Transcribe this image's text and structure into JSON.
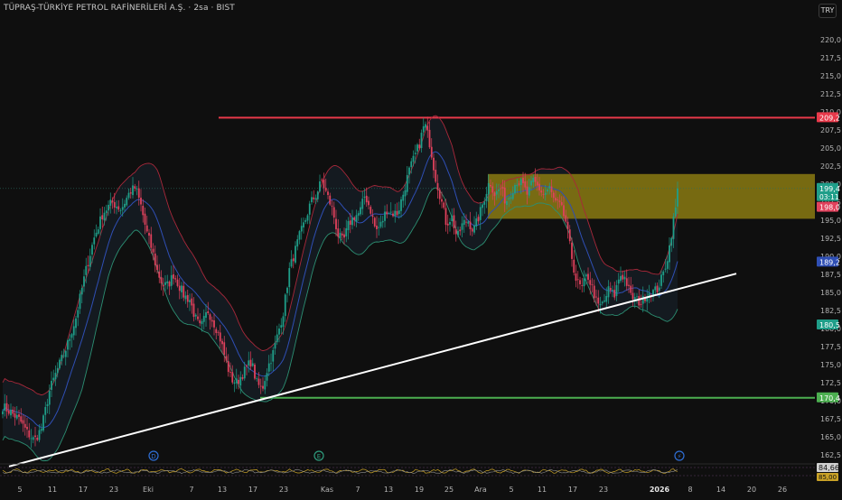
{
  "header": {
    "title": "TÜPRAŞ-TÜRKİYE PETROL RAFİNERİLERİ A.Ş. · 2sa · BIST",
    "currency_button": "TRY"
  },
  "colors": {
    "background": "#0f0f0f",
    "up_candle": "#1f9e89",
    "down_candle": "#e0415c",
    "upper_band": "#a8283a",
    "lower_band": "#2c8f72",
    "middle_band": "#2f4fb5",
    "resistance": "#e8394a",
    "support": "#4caf50",
    "zone": "#8a7a12",
    "trendline": "#ffffff"
  },
  "chart_data": {
    "type": "candlestick",
    "ylim": [
      160.5,
      223.0
    ],
    "y_ticks": [
      "162,5",
      "165,0",
      "167,5",
      "170,0",
      "172,5",
      "175,0",
      "177,5",
      "180,0",
      "182,5",
      "185,0",
      "187,5",
      "190,0",
      "192,5",
      "195,0",
      "197,5",
      "200,0",
      "202,5",
      "205,0",
      "207,5",
      "210,0",
      "212,5",
      "215,0",
      "217,5",
      "220,0"
    ],
    "x_labels": [
      "5",
      "11",
      "17",
      "23",
      "Eki",
      "7",
      "13",
      "17",
      "23",
      "Kas",
      "7",
      "13",
      "19",
      "25",
      "Ara",
      "5",
      "11",
      "17",
      "23",
      "2026",
      "8",
      "14",
      "20",
      "26"
    ],
    "close_path": [
      [
        0,
        169.5
      ],
      [
        12,
        168.4
      ],
      [
        22,
        167.3
      ],
      [
        30,
        165.6
      ],
      [
        38,
        164.5
      ],
      [
        46,
        166.2
      ],
      [
        55,
        171.5
      ],
      [
        64,
        174.5
      ],
      [
        74,
        177.5
      ],
      [
        84,
        181.5
      ],
      [
        94,
        187.5
      ],
      [
        104,
        192.5
      ],
      [
        114,
        196.0
      ],
      [
        124,
        197.5
      ],
      [
        134,
        196.5
      ],
      [
        144,
        199.0
      ],
      [
        150,
        199.5
      ],
      [
        156,
        197.0
      ],
      [
        162,
        193.5
      ],
      [
        168,
        191.0
      ],
      [
        174,
        188.0
      ],
      [
        180,
        186.0
      ],
      [
        186,
        186.0
      ],
      [
        192,
        187.5
      ],
      [
        198,
        186.0
      ],
      [
        204,
        184.5
      ],
      [
        210,
        184.0
      ],
      [
        216,
        181.5
      ],
      [
        222,
        180.0
      ],
      [
        230,
        182.5
      ],
      [
        238,
        180.5
      ],
      [
        244,
        178.5
      ],
      [
        250,
        175.5
      ],
      [
        256,
        173.0
      ],
      [
        262,
        172.5
      ],
      [
        270,
        174.0
      ],
      [
        278,
        175.5
      ],
      [
        284,
        172.5
      ],
      [
        290,
        171.5
      ],
      [
        296,
        174.5
      ],
      [
        302,
        176.5
      ],
      [
        308,
        179.5
      ],
      [
        314,
        182.5
      ],
      [
        320,
        188.0
      ],
      [
        326,
        190.5
      ],
      [
        332,
        193.0
      ],
      [
        338,
        195.0
      ],
      [
        344,
        197.5
      ],
      [
        350,
        198.5
      ],
      [
        356,
        200.5
      ],
      [
        362,
        198.5
      ],
      [
        368,
        196.5
      ],
      [
        374,
        193.0
      ],
      [
        380,
        192.0
      ],
      [
        386,
        194.5
      ],
      [
        392,
        195.5
      ],
      [
        398,
        196.0
      ],
      [
        404,
        198.5
      ],
      [
        410,
        196.5
      ],
      [
        416,
        193.5
      ],
      [
        422,
        194.5
      ],
      [
        428,
        196.5
      ],
      [
        434,
        196.0
      ],
      [
        440,
        196.0
      ],
      [
        446,
        198.5
      ],
      [
        452,
        201.5
      ],
      [
        458,
        203.5
      ],
      [
        464,
        205.5
      ],
      [
        470,
        208.5
      ],
      [
        476,
        205.5
      ],
      [
        482,
        201.0
      ],
      [
        488,
        198.0
      ],
      [
        494,
        194.5
      ],
      [
        500,
        195.5
      ],
      [
        506,
        192.5
      ],
      [
        512,
        194.5
      ],
      [
        518,
        195.0
      ],
      [
        524,
        193.5
      ],
      [
        530,
        195.5
      ],
      [
        536,
        198.0
      ],
      [
        542,
        200.5
      ],
      [
        548,
        198.5
      ],
      [
        554,
        199.5
      ],
      [
        560,
        197.5
      ],
      [
        566,
        199.0
      ],
      [
        572,
        200.5
      ],
      [
        578,
        200.0
      ],
      [
        584,
        198.5
      ],
      [
        590,
        200.5
      ],
      [
        596,
        199.5
      ],
      [
        602,
        198.5
      ],
      [
        608,
        199.5
      ],
      [
        614,
        197.5
      ],
      [
        620,
        197.0
      ],
      [
        626,
        195.0
      ],
      [
        632,
        190.5
      ],
      [
        638,
        186.5
      ],
      [
        644,
        185.5
      ],
      [
        650,
        187.5
      ],
      [
        656,
        185.5
      ],
      [
        662,
        183.0
      ],
      [
        668,
        183.5
      ],
      [
        674,
        185.5
      ],
      [
        680,
        184.5
      ],
      [
        686,
        187.5
      ],
      [
        692,
        187.0
      ],
      [
        698,
        184.5
      ],
      [
        704,
        184.0
      ],
      [
        710,
        183.5
      ],
      [
        716,
        185.0
      ],
      [
        722,
        185.0
      ],
      [
        728,
        185.5
      ],
      [
        734,
        187.5
      ],
      [
        740,
        190.5
      ],
      [
        746,
        195.5
      ],
      [
        752,
        199.4
      ]
    ],
    "band_width_path": [
      [
        0,
        4
      ],
      [
        30,
        4
      ],
      [
        60,
        5
      ],
      [
        90,
        7
      ],
      [
        120,
        4.5
      ],
      [
        150,
        4
      ],
      [
        175,
        7
      ],
      [
        200,
        6
      ],
      [
        230,
        3.5
      ],
      [
        260,
        4.5
      ],
      [
        290,
        3.5
      ],
      [
        320,
        4
      ],
      [
        350,
        4
      ],
      [
        380,
        5
      ],
      [
        410,
        4
      ],
      [
        440,
        3.5
      ],
      [
        470,
        5
      ],
      [
        500,
        5
      ],
      [
        530,
        3
      ],
      [
        570,
        2
      ],
      [
        610,
        2.5
      ],
      [
        640,
        5
      ],
      [
        670,
        3.5
      ],
      [
        700,
        2.5
      ],
      [
        730,
        3
      ],
      [
        752,
        7
      ]
    ],
    "resistance": {
      "value": 209.2,
      "label": "209,2"
    },
    "support": {
      "value": 170.4,
      "label": "170,4"
    },
    "zone": {
      "top": 201.4,
      "bottom": 195.2
    },
    "trendline": {
      "start": [
        10,
        160.9
      ],
      "end": [
        815,
        187.6
      ]
    },
    "price_labels": {
      "last": "199,4",
      "countdown": "03:11",
      "prev_close": "198,0",
      "upper_band": "189,2",
      "lower_band": "180,5"
    },
    "events": [
      "D",
      "E",
      "⚡"
    ],
    "oscillator": {
      "upper_label": "84,66",
      "lower_label": "85,00"
    },
    "legend": "none",
    "grid": false
  }
}
